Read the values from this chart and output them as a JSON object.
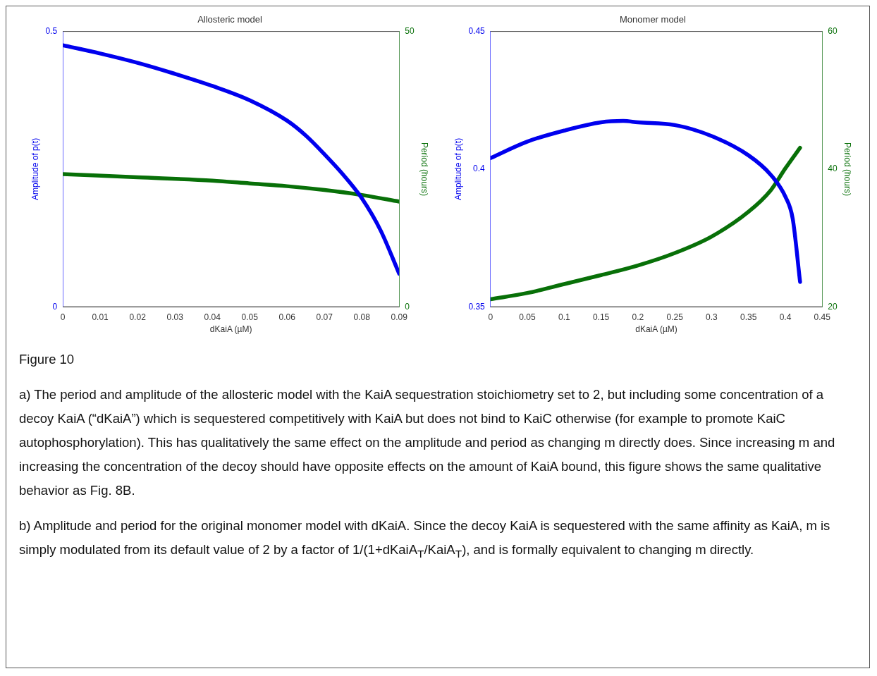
{
  "chart_data": [
    {
      "type": "line",
      "title": "Allosteric model",
      "xlabel": "dKaiA (µM)",
      "ylabel": "Amplitude of p(t)",
      "y2label": "Period (hours)",
      "xlim": [
        0,
        0.09
      ],
      "xticks": [
        0,
        0.01,
        0.02,
        0.03,
        0.04,
        0.05,
        0.06,
        0.07,
        0.08,
        0.09
      ],
      "ylim": [
        0,
        0.5
      ],
      "yticks": [
        0,
        0.5
      ],
      "y2lim": [
        0,
        50
      ],
      "y2ticks": [
        0,
        50
      ],
      "grid": false,
      "legend": false,
      "marker": "none",
      "line_style": "solid",
      "series": [
        {
          "color": "#0000ee",
          "x": [
            0,
            0.01,
            0.02,
            0.03,
            0.04,
            0.05,
            0.06,
            0.065,
            0.07,
            0.075,
            0.08,
            0.085,
            0.09
          ],
          "values": [
            0.475,
            0.46,
            0.443,
            0.423,
            0.401,
            0.375,
            0.338,
            0.311,
            0.277,
            0.24,
            0.197,
            0.139,
            0.06
          ]
        },
        {
          "color": "#087008",
          "axis": "y2",
          "x": [
            0,
            0.02,
            0.04,
            0.05,
            0.06,
            0.07,
            0.08,
            0.09
          ],
          "values": [
            24.1,
            23.5,
            22.9,
            22.4,
            21.9,
            21.2,
            20.3,
            19.1
          ]
        }
      ]
    },
    {
      "type": "line",
      "title": "Monomer model",
      "xlabel": "dKaiA (µM)",
      "ylabel": "Amplitude of p(t)",
      "y2label": "Period (hours)",
      "xlim": [
        0,
        0.45
      ],
      "xticks": [
        0,
        0.05,
        0.1,
        0.15,
        0.2,
        0.25,
        0.3,
        0.35,
        0.4,
        0.45
      ],
      "ylim": [
        0.35,
        0.45
      ],
      "yticks": [
        0.35,
        0.4,
        0.45
      ],
      "y2lim": [
        20,
        60
      ],
      "y2ticks": [
        20,
        40,
        60
      ],
      "grid": false,
      "legend": false,
      "marker": "none",
      "line_style": "solid",
      "series": [
        {
          "color": "#0000ee",
          "x": [
            0,
            0.05,
            0.1,
            0.15,
            0.18,
            0.2,
            0.25,
            0.3,
            0.35,
            0.38,
            0.4,
            0.41,
            0.42
          ],
          "values": [
            0.404,
            0.41,
            0.414,
            0.417,
            0.4175,
            0.417,
            0.416,
            0.412,
            0.405,
            0.398,
            0.39,
            0.382,
            0.359
          ]
        },
        {
          "color": "#087008",
          "axis": "y2",
          "x": [
            0,
            0.05,
            0.1,
            0.15,
            0.2,
            0.25,
            0.3,
            0.35,
            0.38,
            0.4,
            0.42
          ],
          "values": [
            21.1,
            22,
            23.3,
            24.6,
            26,
            27.8,
            30.2,
            33.8,
            36.9,
            40.1,
            43.1
          ]
        }
      ],
      "annotations": [
        "Figure 10",
        "a) The period and amplitude of the allosteric model with the KaiA sequestration stoichiometry set to 2, but including some concentration of a decoy KaiA (“dKaiA”) which is sequestered competitively with KaiA but does not bind to KaiC otherwise (for example to promote KaiC autophosphorylation). This has qualitatively the same effect on the amplitude and period as changing m directly does. Since increasing m and increasing the concentration of the decoy should have opposite effects on the amount of KaiA bound, this figure shows the same qualitative behavior as Fig. 8B.",
        "b) Amplitude and period for the original monomer model with dKaiA. Since the decoy KaiA is sequestered with the same affinity as KaiA, m is simply modulated from its default value of 2 by a factor of 1/(1+dKaiA$_{T}$/KaiA$_{T}$), and is formally equivalent to changing m directly."
      ]
    }
  ]
}
